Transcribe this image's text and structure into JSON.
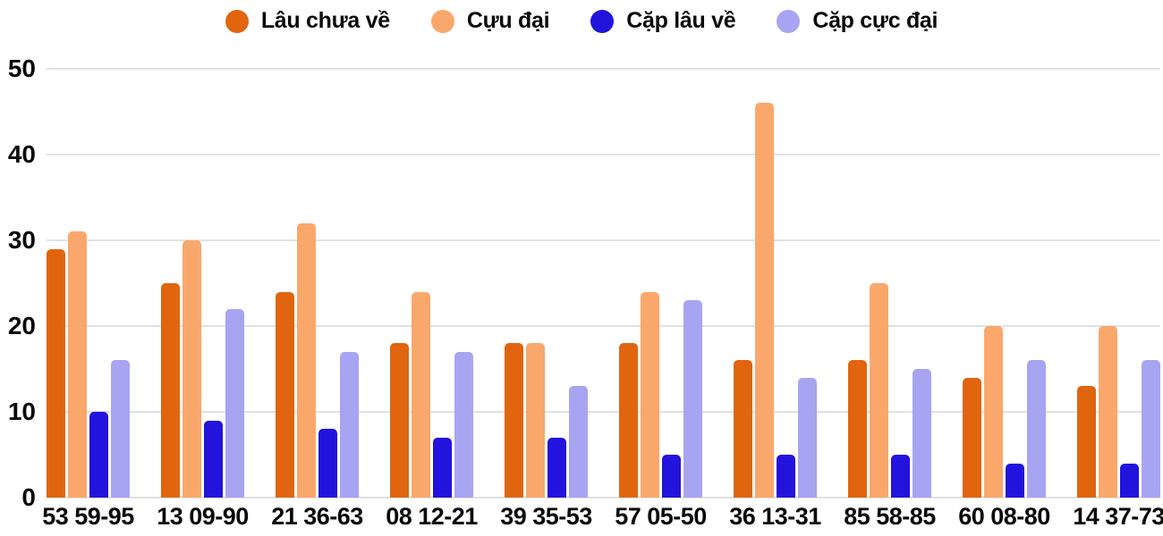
{
  "chart_data": {
    "type": "bar",
    "title": "",
    "xlabel": "",
    "ylabel": "",
    "categories": [
      "53 59-95",
      "13 09-90",
      "21 36-63",
      "08 12-21",
      "39 35-53",
      "57 05-50",
      "36 13-31",
      "85 58-85",
      "60 08-80",
      "14 37-73"
    ],
    "series": [
      {
        "name": "Lâu chưa về",
        "color": "#E0650E",
        "values": [
          29,
          25,
          24,
          18,
          18,
          18,
          16,
          16,
          14,
          13
        ]
      },
      {
        "name": "Cựu đại",
        "color": "#FAA76C",
        "values": [
          31,
          30,
          32,
          24,
          18,
          24,
          46,
          25,
          20,
          20
        ]
      },
      {
        "name": "Cặp lâu về",
        "color": "#2213DD",
        "values": [
          10,
          9,
          8,
          7,
          7,
          5,
          5,
          5,
          4,
          4
        ]
      },
      {
        "name": "Cặp cực đại",
        "color": "#A7A4F2",
        "values": [
          16,
          22,
          17,
          17,
          13,
          23,
          14,
          15,
          16,
          16
        ]
      }
    ],
    "ylim": [
      0,
      50
    ],
    "yticks": [
      0,
      10,
      20,
      30,
      40,
      50
    ],
    "grid": "horizontal",
    "legend_position": "top",
    "colors": {
      "grid": "#e1e1e1",
      "text": "#0a0a0a",
      "background": "#ffffff"
    }
  }
}
